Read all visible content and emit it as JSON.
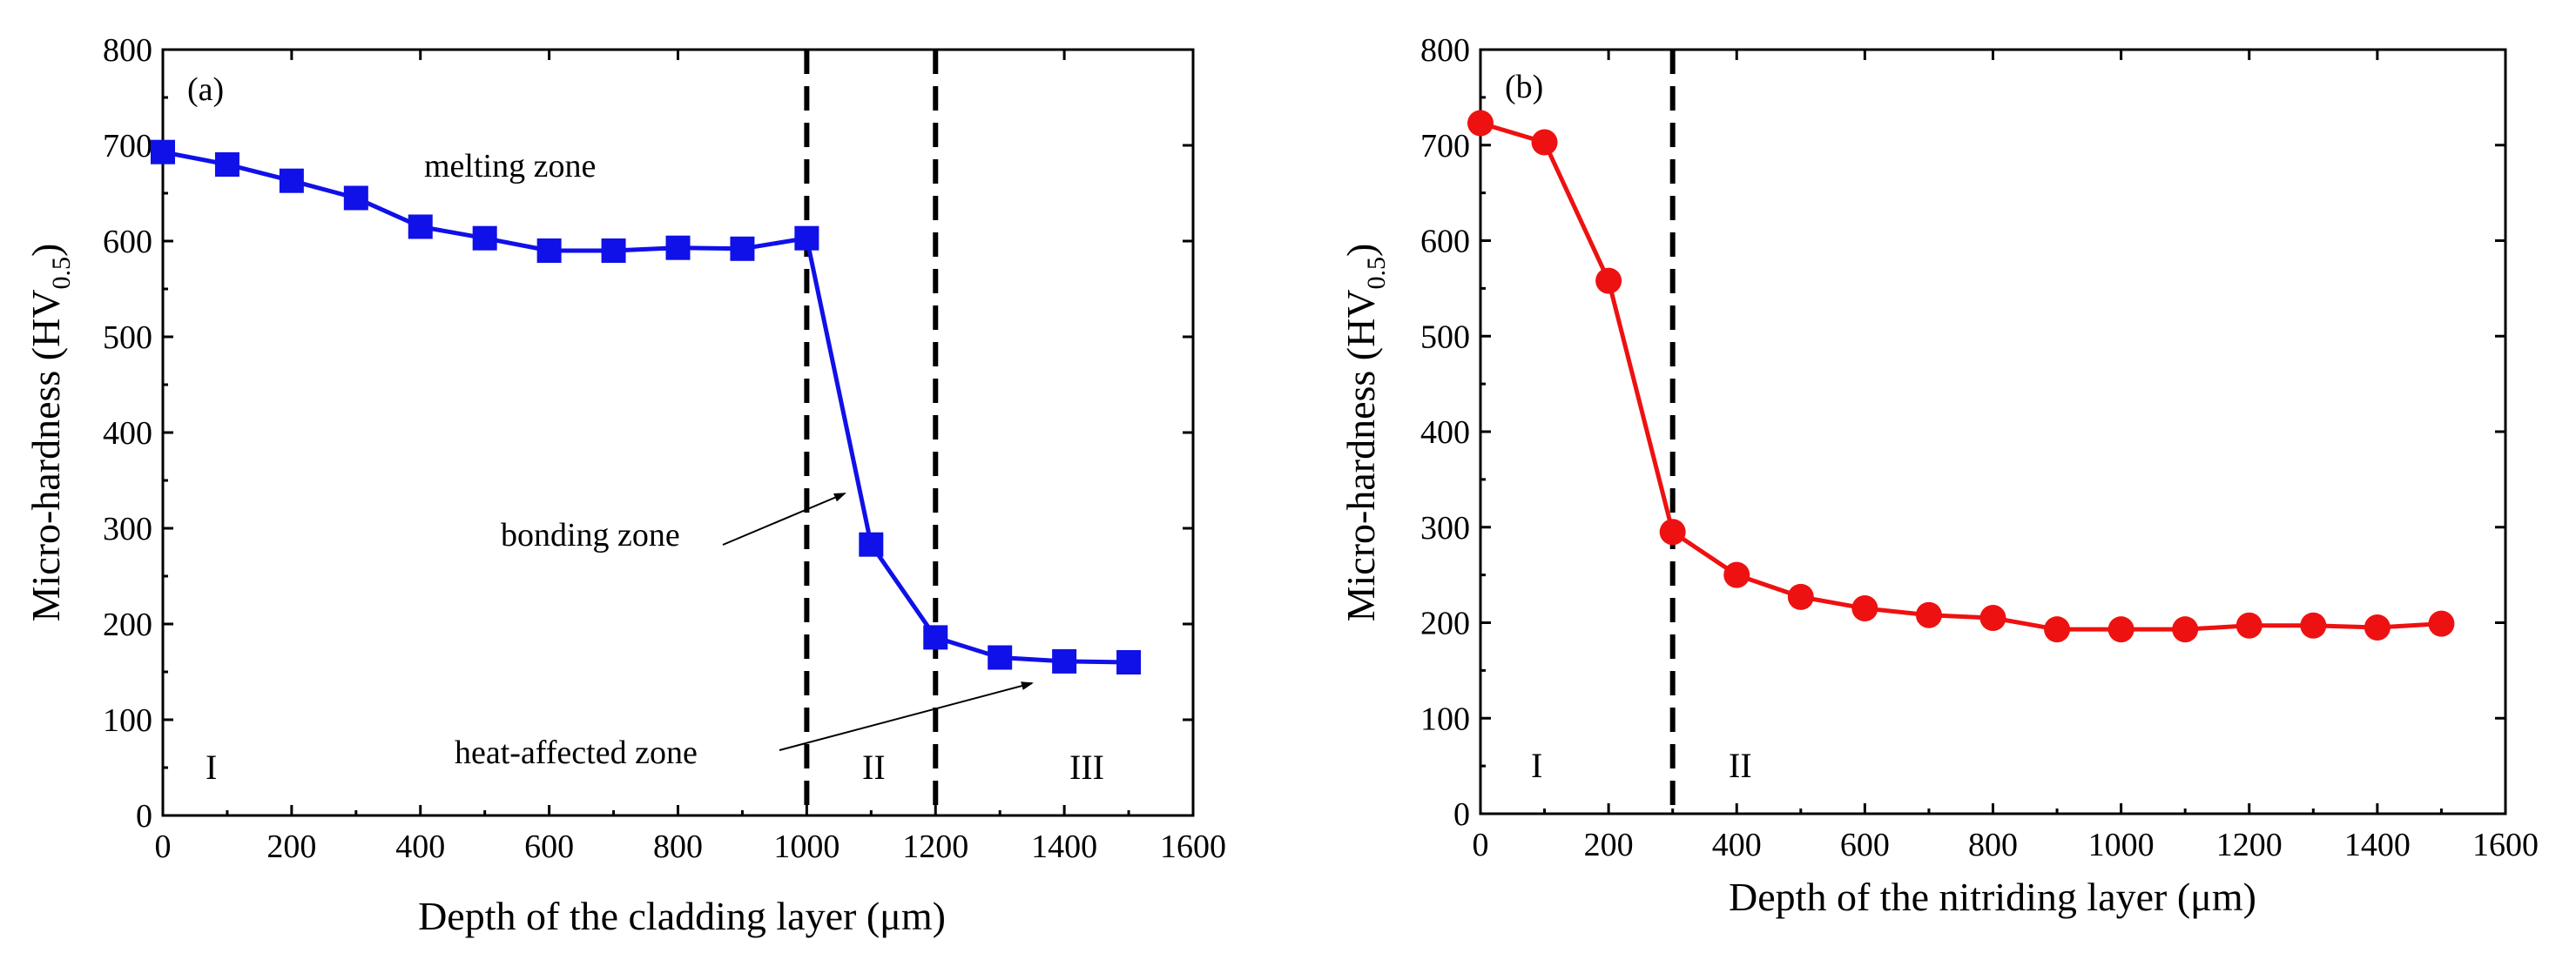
{
  "chart_data": [
    {
      "type": "line",
      "panel_label": "(a)",
      "xlabel": "Depth of the cladding layer (μm)",
      "ylabel_main": "Micro-hardness (HV",
      "ylabel_sub": "0.5",
      "ylabel_close": ")",
      "xlim": [
        0,
        1600
      ],
      "ylim": [
        0,
        800
      ],
      "xticks": [
        "0",
        "200",
        "400",
        "600",
        "800",
        "1000",
        "1200",
        "1400",
        "1600"
      ],
      "yticks": [
        "0",
        "100",
        "200",
        "300",
        "400",
        "500",
        "600",
        "700",
        "800"
      ],
      "marker": "square",
      "color": "#1010e8",
      "x": [
        0,
        100,
        200,
        300,
        400,
        500,
        600,
        700,
        800,
        900,
        1000,
        1100,
        1200,
        1300,
        1400,
        1500
      ],
      "y": [
        693,
        680,
        663,
        645,
        615,
        603,
        590,
        590,
        593,
        592,
        603,
        283,
        186,
        165,
        161,
        160
      ],
      "dividers": [
        1000,
        1200
      ],
      "annotations": {
        "melting": "melting zone",
        "bonding": "bonding zone",
        "heat": "heat-affected zone"
      },
      "regions": [
        "I",
        "II",
        "III"
      ]
    },
    {
      "type": "line",
      "panel_label": "(b)",
      "xlabel": "Depth of the nitriding layer (μm)",
      "ylabel_main": "Micro-hardness (HV",
      "ylabel_sub": "0.5",
      "ylabel_close": ")",
      "xlim": [
        0,
        1600
      ],
      "ylim": [
        0,
        800
      ],
      "xticks": [
        "0",
        "200",
        "400",
        "600",
        "800",
        "1000",
        "1200",
        "1400",
        "1600"
      ],
      "yticks": [
        "0",
        "100",
        "200",
        "300",
        "400",
        "500",
        "600",
        "700",
        "800"
      ],
      "marker": "circle",
      "color": "#ee1111",
      "x": [
        0,
        100,
        200,
        300,
        400,
        500,
        600,
        700,
        800,
        900,
        1000,
        1100,
        1200,
        1300,
        1400,
        1500
      ],
      "y": [
        723,
        703,
        558,
        295,
        250,
        227,
        215,
        208,
        205,
        193,
        193,
        193,
        197,
        197,
        195,
        199
      ],
      "dividers": [
        300
      ],
      "regions": [
        "I",
        "II"
      ]
    }
  ]
}
